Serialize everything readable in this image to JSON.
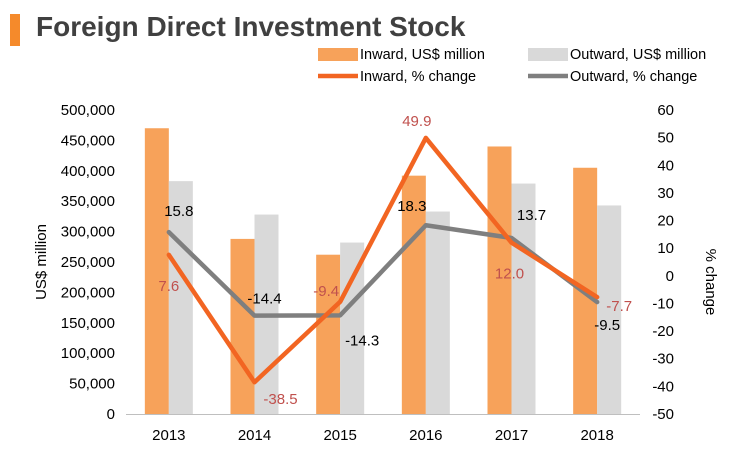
{
  "title": "Foreign Direct Investment Stock",
  "colors": {
    "accent": "#F58A2B",
    "inward_bar": "#F7A25A",
    "outward_bar": "#D9D9D9",
    "inward_line": "#F26522",
    "outward_line": "#7F7F7F",
    "inward_label": "#C0504D"
  },
  "chart_data": {
    "type": "bar",
    "categories": [
      "2013",
      "2014",
      "2015",
      "2016",
      "2017",
      "2018"
    ],
    "series": [
      {
        "name": "Inward, US$ million",
        "type": "bar",
        "axis": "left",
        "values": [
          470000,
          288000,
          262000,
          392000,
          440000,
          405000
        ]
      },
      {
        "name": "Outward, US$ million",
        "type": "bar",
        "axis": "left",
        "values": [
          383000,
          328000,
          282000,
          333000,
          379000,
          343000
        ]
      },
      {
        "name": "Inward, % change",
        "type": "line",
        "axis": "right",
        "values": [
          7.6,
          -38.5,
          -9.4,
          49.9,
          12.0,
          -7.7
        ],
        "labels": [
          "7.6",
          "-38.5",
          "-9.4",
          "49.9",
          "12.0",
          "-7.7"
        ]
      },
      {
        "name": "Outward, % change",
        "type": "line",
        "axis": "right",
        "values": [
          15.8,
          -14.4,
          -14.3,
          18.3,
          13.7,
          -9.5
        ],
        "labels": [
          "15.8",
          "-14.4",
          "-14.3",
          "18.3",
          "13.7",
          "-9.5"
        ]
      }
    ],
    "ylabel": "US$ million",
    "y2label": "% change",
    "ylim": [
      0,
      500000
    ],
    "y2lim": [
      -50,
      60
    ],
    "yticks": [
      "0",
      "50,000",
      "100,000",
      "150,000",
      "200,000",
      "250,000",
      "300,000",
      "350,000",
      "400,000",
      "450,000",
      "500,000"
    ],
    "y2ticks": [
      "-50",
      "-40",
      "-30",
      "-20",
      "-10",
      "0",
      "10",
      "20",
      "30",
      "40",
      "50",
      "60"
    ],
    "legend_position": "top",
    "grid": false
  }
}
